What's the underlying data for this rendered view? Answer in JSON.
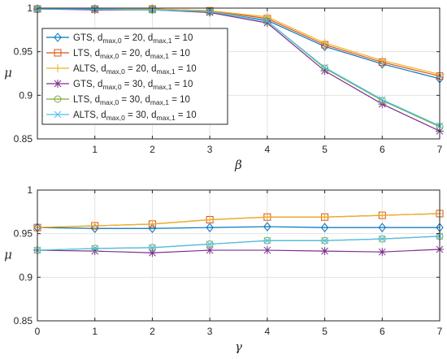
{
  "chart_data": [
    {
      "type": "line",
      "xlabel": "β",
      "ylabel": "μ",
      "xlim": [
        0,
        7
      ],
      "ylim": [
        0.85,
        1
      ],
      "xticks": [
        "1",
        "2",
        "3",
        "4",
        "5",
        "6",
        "7"
      ],
      "yticks": [
        "0.85",
        "0.9",
        "0.95",
        "1"
      ],
      "grid": true,
      "legend_position": "bottom-left",
      "x": [
        0,
        1,
        2,
        3,
        4,
        5,
        6,
        7
      ],
      "series": [
        {
          "name": "GTS, d_max,0 = 20, d_max,1 = 10",
          "label_main": "GTS, d",
          "label_sub1": "max,0",
          "label_mid": " = 20, d",
          "label_sub2": "max,1",
          "label_end": " = 10",
          "color": "#0072BD",
          "marker": "diamond",
          "values": [
            0.999,
            0.999,
            0.999,
            0.996,
            0.986,
            0.956,
            0.936,
            0.919
          ]
        },
        {
          "name": "LTS, d_max,0 = 20, d_max,1 = 10",
          "label_main": "LTS, d",
          "label_sub1": "max,0",
          "label_mid": " = 20, d",
          "label_sub2": "max,1",
          "label_end": " = 10",
          "color": "#D95319",
          "marker": "square",
          "values": [
            0.999,
            0.999,
            0.999,
            0.997,
            0.988,
            0.958,
            0.938,
            0.922
          ]
        },
        {
          "name": "ALTS, d_max,0 = 20, d_max,1 = 10",
          "label_main": "ALTS, d",
          "label_sub1": "max,0",
          "label_mid": " = 20, d",
          "label_sub2": "max,1",
          "label_end": " = 10",
          "color": "#EDB120",
          "marker": "plus",
          "values": [
            0.999,
            0.999,
            0.999,
            0.997,
            0.99,
            0.96,
            0.94,
            0.924
          ]
        },
        {
          "name": "GTS, d_max,0 = 30, d_max,1 = 10",
          "label_main": "GTS, d",
          "label_sub1": "max,0",
          "label_mid": " = 30, d",
          "label_sub2": "max,1",
          "label_end": " = 10",
          "color": "#7E2F8E",
          "marker": "star",
          "values": [
            0.999,
            0.998,
            0.998,
            0.995,
            0.983,
            0.928,
            0.89,
            0.859
          ]
        },
        {
          "name": "LTS, d_max,0 = 30, d_max,1 = 10",
          "label_main": "LTS, d",
          "label_sub1": "max,0",
          "label_mid": " = 30, d",
          "label_sub2": "max,1",
          "label_end": " = 10",
          "color": "#77AC30",
          "marker": "circle",
          "values": [
            0.999,
            0.999,
            0.998,
            0.996,
            0.985,
            0.931,
            0.894,
            0.864
          ]
        },
        {
          "name": "ALTS, d_max,0 = 30, d_max,1 = 10",
          "label_main": "ALTS, d",
          "label_sub1": "max,0",
          "label_mid": " = 30, d",
          "label_sub2": "max,1",
          "label_end": " = 10",
          "color": "#4DBEEE",
          "marker": "x",
          "values": [
            0.999,
            0.999,
            0.998,
            0.996,
            0.985,
            0.932,
            0.895,
            0.865
          ]
        }
      ]
    },
    {
      "type": "line",
      "xlabel": "γ",
      "ylabel": "μ",
      "xlim": [
        0,
        7
      ],
      "ylim": [
        0.85,
        1
      ],
      "xticks": [
        "0",
        "1",
        "2",
        "3",
        "4",
        "5",
        "6",
        "7"
      ],
      "yticks": [
        "0.85",
        "0.9",
        "0.95",
        "1"
      ],
      "grid": true,
      "x": [
        0,
        1,
        2,
        3,
        4,
        5,
        6,
        7
      ],
      "series": [
        {
          "color": "#0072BD",
          "marker": "diamond",
          "values": [
            0.957,
            0.956,
            0.956,
            0.957,
            0.958,
            0.957,
            0.957,
            0.957
          ]
        },
        {
          "color": "#D95319",
          "marker": "square",
          "values": [
            0.957,
            0.959,
            0.961,
            0.966,
            0.969,
            0.969,
            0.971,
            0.973
          ]
        },
        {
          "color": "#EDB120",
          "marker": "plus",
          "values": [
            0.957,
            0.959,
            0.961,
            0.966,
            0.969,
            0.969,
            0.971,
            0.973
          ]
        },
        {
          "color": "#7E2F8E",
          "marker": "star",
          "values": [
            0.931,
            0.93,
            0.928,
            0.931,
            0.931,
            0.93,
            0.929,
            0.932
          ]
        },
        {
          "color": "#77AC30",
          "marker": "circle",
          "values": [
            0.931,
            0.933,
            0.934,
            0.938,
            0.942,
            0.942,
            0.944,
            0.947
          ]
        },
        {
          "color": "#4DBEEE",
          "marker": "x",
          "values": [
            0.931,
            0.933,
            0.934,
            0.938,
            0.942,
            0.942,
            0.944,
            0.947
          ]
        }
      ]
    }
  ]
}
